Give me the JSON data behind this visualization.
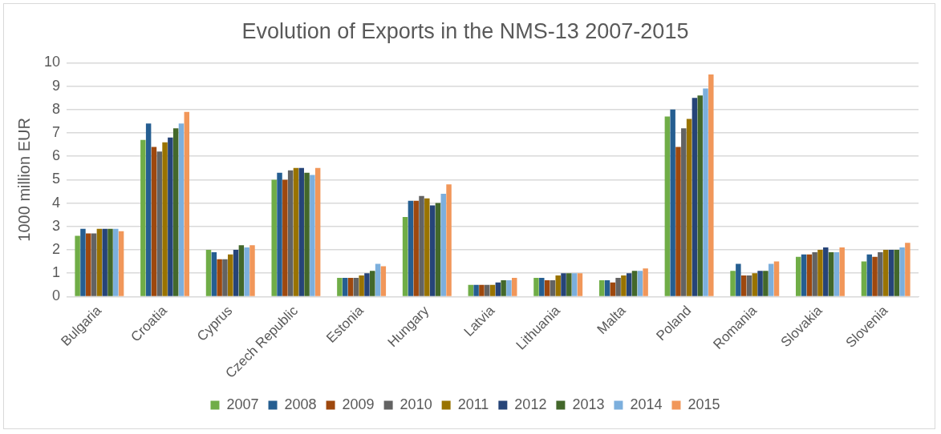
{
  "chart_data": {
    "type": "bar",
    "title": "Evolution of Exports in the NMS-13 2007-2015",
    "ylabel": "1000 million EUR",
    "categories": [
      "Bulgaria",
      "Croatia",
      "Cyprus",
      "Czech Republic",
      "Estonia",
      "Hungary",
      "Latvia",
      "Lithuania",
      "Malta",
      "Poland",
      "Romania",
      "Slovakia",
      "Slovenia"
    ],
    "series": [
      {
        "name": "2007",
        "color": "#70ad47",
        "values": [
          2.6,
          6.7,
          2.0,
          5.0,
          0.8,
          3.4,
          0.5,
          0.8,
          0.7,
          7.7,
          1.1,
          1.7,
          1.5
        ]
      },
      {
        "name": "2008",
        "color": "#255e91",
        "values": [
          2.9,
          7.4,
          1.9,
          5.3,
          0.8,
          4.1,
          0.5,
          0.8,
          0.7,
          8.0,
          1.4,
          1.8,
          1.8
        ]
      },
      {
        "name": "2009",
        "color": "#9e480e",
        "values": [
          2.7,
          6.4,
          1.6,
          5.0,
          0.8,
          4.1,
          0.5,
          0.7,
          0.6,
          6.4,
          0.9,
          1.8,
          1.7
        ]
      },
      {
        "name": "2010",
        "color": "#636363",
        "values": [
          2.7,
          6.2,
          1.6,
          5.4,
          0.8,
          4.3,
          0.5,
          0.7,
          0.8,
          7.2,
          0.9,
          1.9,
          1.9
        ]
      },
      {
        "name": "2011",
        "color": "#997300",
        "values": [
          2.9,
          6.6,
          1.8,
          5.5,
          0.9,
          4.2,
          0.5,
          0.9,
          0.9,
          7.6,
          1.0,
          2.0,
          2.0
        ]
      },
      {
        "name": "2012",
        "color": "#264478",
        "values": [
          2.9,
          6.8,
          2.0,
          5.5,
          1.0,
          3.9,
          0.6,
          1.0,
          1.0,
          8.5,
          1.1,
          2.1,
          2.0
        ]
      },
      {
        "name": "2013",
        "color": "#43682b",
        "values": [
          2.9,
          7.2,
          2.2,
          5.3,
          1.1,
          4.0,
          0.7,
          1.0,
          1.1,
          8.6,
          1.1,
          1.9,
          2.0
        ]
      },
      {
        "name": "2014",
        "color": "#7cafdd",
        "values": [
          2.9,
          7.4,
          2.1,
          5.2,
          1.4,
          4.4,
          0.7,
          1.0,
          1.1,
          8.9,
          1.4,
          1.9,
          2.1
        ]
      },
      {
        "name": "2015",
        "color": "#f1975a",
        "values": [
          2.8,
          7.9,
          2.2,
          5.5,
          1.3,
          4.8,
          0.8,
          1.0,
          1.2,
          9.5,
          1.5,
          2.1,
          2.3
        ]
      }
    ],
    "ylim": [
      0,
      10
    ],
    "yticks": [
      0,
      1,
      2,
      3,
      4,
      5,
      6,
      7,
      8,
      9,
      10
    ],
    "grid": "y",
    "legend": "bottom"
  }
}
